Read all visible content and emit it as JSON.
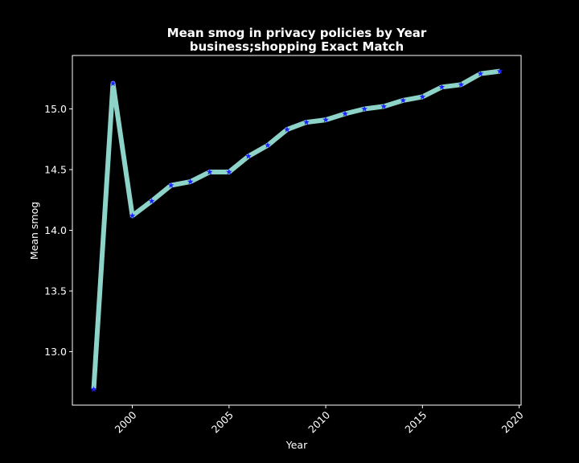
{
  "chart_data": {
    "type": "line",
    "title_line1": "Mean smog in privacy policies by Year",
    "title_line2": "business;shopping Exact Match",
    "xlabel": "Year",
    "ylabel": "Mean smog",
    "xlim": [
      1996.9,
      2020.1
    ],
    "ylim": [
      12.56,
      15.44
    ],
    "xticks": [
      2000,
      2005,
      2010,
      2015,
      2020
    ],
    "yticks": [
      13.0,
      13.5,
      14.0,
      14.5,
      15.0
    ],
    "grid": false,
    "series": [
      {
        "x": [
          1998,
          1999,
          2000,
          2001,
          2002,
          2003,
          2004,
          2005,
          2006,
          2007,
          2008,
          2009,
          2010,
          2011,
          2012,
          2013,
          2014,
          2015,
          2016,
          2017,
          2018,
          2019
        ],
        "values": [
          12.69,
          15.21,
          14.12,
          14.24,
          14.37,
          14.4,
          14.48,
          14.48,
          14.61,
          14.7,
          14.83,
          14.89,
          14.91,
          14.96,
          15.0,
          15.02,
          15.07,
          15.1,
          15.18,
          15.2,
          15.29,
          15.31
        ]
      }
    ],
    "colors": {
      "background": "#000000",
      "line": "#8dd3c7",
      "marker": "#1f1fff",
      "axes": "#ffffff",
      "text": "#ffffff"
    }
  }
}
